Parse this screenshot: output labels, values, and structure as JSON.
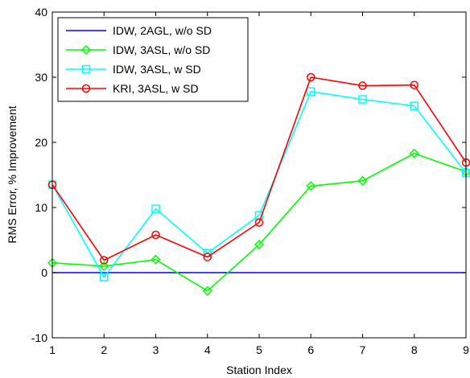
{
  "chart_data": {
    "type": "line",
    "xlabel": "Station Index",
    "ylabel": "RMS Error, % Improvement",
    "xlim": [
      1,
      9
    ],
    "ylim": [
      -10,
      40
    ],
    "xticks": [
      1,
      2,
      3,
      4,
      5,
      6,
      7,
      8,
      9
    ],
    "yticks": [
      -10,
      0,
      10,
      20,
      30,
      40
    ],
    "grid": false,
    "legend_position": "top-left",
    "x": [
      1,
      2,
      3,
      4,
      5,
      6,
      7,
      8,
      9
    ],
    "series": [
      {
        "name": "IDW, 2AGL, w/o SD",
        "color": "#0000ff",
        "marker": "none",
        "values": [
          0,
          0,
          0,
          0,
          0,
          0,
          0,
          0,
          0
        ]
      },
      {
        "name": "IDW, 3ASL, w/o SD",
        "color": "#00ff00",
        "marker": "diamond",
        "values": [
          1.5,
          1.0,
          2.0,
          -2.8,
          4.3,
          13.3,
          14.1,
          18.3,
          15.5
        ]
      },
      {
        "name": "IDW, 3ASL, w SD",
        "color": "#00ffff",
        "marker": "square",
        "values": [
          13.5,
          -0.7,
          9.8,
          3.0,
          8.8,
          27.8,
          26.6,
          25.6,
          15.3
        ]
      },
      {
        "name": "KRI, 3ASL, w SD",
        "color": "#ff0000",
        "marker": "circle",
        "values": [
          13.5,
          1.9,
          5.8,
          2.4,
          7.7,
          30.0,
          28.7,
          28.8,
          16.9
        ]
      }
    ]
  }
}
